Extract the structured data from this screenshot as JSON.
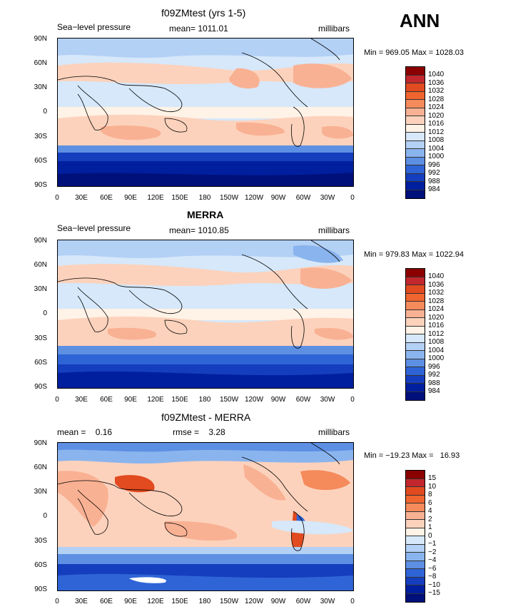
{
  "season": "ANN",
  "units": "millibars",
  "lat_labels": [
    "90N",
    "60N",
    "30N",
    "0",
    "30S",
    "60S",
    "90S"
  ],
  "lon_labels": [
    "0",
    "30E",
    "60E",
    "90E",
    "120E",
    "150E",
    "180",
    "150W",
    "120W",
    "90W",
    "60W",
    "30W",
    "0"
  ],
  "panels": [
    {
      "title": "f09ZMtest (yrs 1-5)",
      "left_label": "Sea−level pressure",
      "mid_label": "mean= 1011.01",
      "minmax": "Min = 969.05 Max = 1028.03",
      "levels": [
        "1040",
        "1036",
        "1032",
        "1028",
        "1024",
        "1020",
        "1016",
        "1012",
        "1008",
        "1004",
        "1000",
        "996",
        "992",
        "988",
        "984"
      ],
      "colors": [
        "#8b0000",
        "#c1272d",
        "#e24a1f",
        "#f0652f",
        "#f58a5b",
        "#f9b193",
        "#fcd2bc",
        "#fff2e6",
        "#d6e8fa",
        "#b3d0f5",
        "#8ab4ee",
        "#5d8fe3",
        "#2f64d6",
        "#143ebd",
        "#001f9e",
        "#00107a"
      ]
    },
    {
      "title": "MERRA",
      "left_label": "Sea−level pressure",
      "mid_label": "mean= 1010.85",
      "minmax": "Min = 979.83 Max = 1022.94",
      "levels": [
        "1040",
        "1036",
        "1032",
        "1028",
        "1024",
        "1020",
        "1016",
        "1012",
        "1008",
        "1004",
        "1000",
        "996",
        "992",
        "988",
        "984"
      ],
      "colors": [
        "#8b0000",
        "#c1272d",
        "#e24a1f",
        "#f0652f",
        "#f58a5b",
        "#f9b193",
        "#fcd2bc",
        "#fff2e6",
        "#d6e8fa",
        "#b3d0f5",
        "#8ab4ee",
        "#5d8fe3",
        "#2f64d6",
        "#143ebd",
        "#001f9e",
        "#00107a"
      ]
    },
    {
      "title": "f09ZMtest - MERRA",
      "left_label": "mean =    0.16",
      "mid_label": "rmse =    3.28",
      "minmax": "Min = −19.23 Max =   16.93",
      "levels": [
        "15",
        "10",
        "8",
        "6",
        "4",
        "2",
        "1",
        "0",
        "−1",
        "−2",
        "−4",
        "−6",
        "−8",
        "−10",
        "−15"
      ],
      "colors": [
        "#8b0000",
        "#c1272d",
        "#e24a1f",
        "#f0652f",
        "#f58a5b",
        "#f9b193",
        "#fcd2bc",
        "#fff2e6",
        "#d6e8fa",
        "#b3d0f5",
        "#8ab4ee",
        "#5d8fe3",
        "#2f64d6",
        "#143ebd",
        "#001f9e",
        "#00107a"
      ]
    }
  ]
}
